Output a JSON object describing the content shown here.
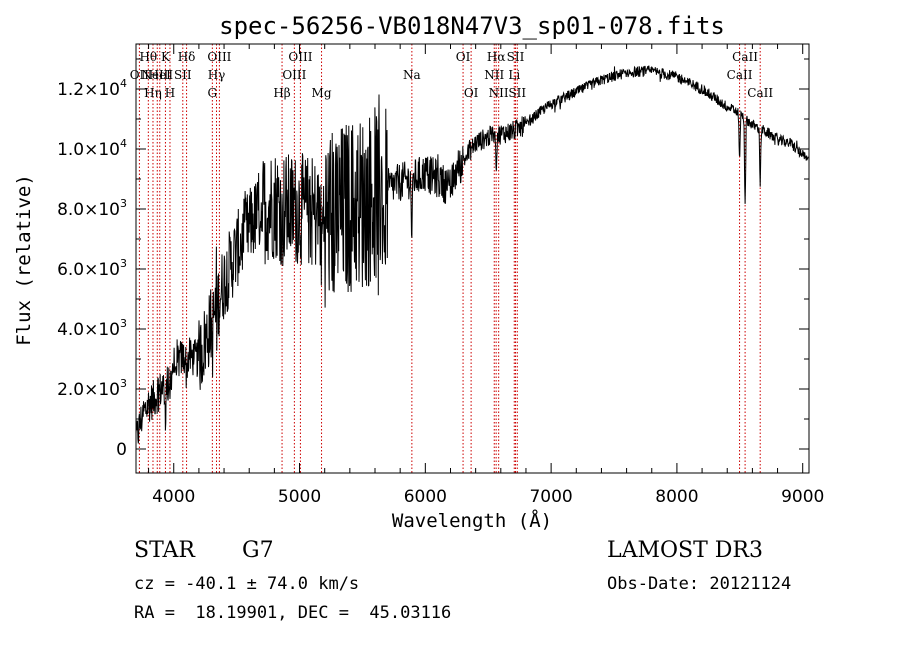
{
  "chart_data": {
    "type": "line",
    "title": "spec-56256-VB018N47V3_sp01-078.fits",
    "xlabel": "Wavelength (Å)",
    "ylabel": "Flux (relative)",
    "xlim": [
      3700,
      9050
    ],
    "ylim": [
      -800,
      13500
    ],
    "x_ticks": [
      {
        "value": 4000,
        "label": "4000"
      },
      {
        "value": 5000,
        "label": "5000"
      },
      {
        "value": 6000,
        "label": "6000"
      },
      {
        "value": 7000,
        "label": "7000"
      },
      {
        "value": 8000,
        "label": "8000"
      },
      {
        "value": 9000,
        "label": "9000"
      }
    ],
    "y_ticks": [
      {
        "value": 0,
        "mant": "0",
        "exp": ""
      },
      {
        "value": 2000,
        "mant": "2.0×10",
        "exp": "3"
      },
      {
        "value": 4000,
        "mant": "4.0×10",
        "exp": "3"
      },
      {
        "value": 6000,
        "mant": "6.0×10",
        "exp": "3"
      },
      {
        "value": 8000,
        "mant": "8.0×10",
        "exp": "3"
      },
      {
        "value": 10000,
        "mant": "1.0×10",
        "exp": "4"
      },
      {
        "value": 12000,
        "mant": "1.2×10",
        "exp": "4"
      }
    ],
    "continuum": [
      [
        3700,
        300
      ],
      [
        3750,
        1100
      ],
      [
        3800,
        1500
      ],
      [
        3850,
        1700
      ],
      [
        3900,
        2000
      ],
      [
        3950,
        2200
      ],
      [
        4000,
        2800
      ],
      [
        4050,
        3000
      ],
      [
        4100,
        3100
      ],
      [
        4200,
        3000
      ],
      [
        4300,
        4200
      ],
      [
        4400,
        5600
      ],
      [
        4500,
        6600
      ],
      [
        4600,
        7400
      ],
      [
        4700,
        8000
      ],
      [
        4800,
        8200
      ],
      [
        4900,
        8000
      ],
      [
        5000,
        8000
      ],
      [
        5100,
        7900
      ],
      [
        5200,
        7700
      ],
      [
        5300,
        7800
      ],
      [
        5400,
        8100
      ],
      [
        5500,
        8200
      ],
      [
        5600,
        8500
      ],
      [
        5700,
        8700
      ],
      [
        5800,
        8900
      ],
      [
        5900,
        9000
      ],
      [
        6000,
        9200
      ],
      [
        6100,
        9000
      ],
      [
        6200,
        8700
      ],
      [
        6250,
        9300
      ],
      [
        6300,
        9600
      ],
      [
        6400,
        10200
      ],
      [
        6500,
        10400
      ],
      [
        6600,
        10500
      ],
      [
        6700,
        10600
      ],
      [
        6800,
        10800
      ],
      [
        6900,
        11200
      ],
      [
        7000,
        11500
      ],
      [
        7200,
        11900
      ],
      [
        7400,
        12300
      ],
      [
        7600,
        12550
      ],
      [
        7800,
        12600
      ],
      [
        8000,
        12400
      ],
      [
        8200,
        12000
      ],
      [
        8400,
        11400
      ],
      [
        8500,
        11200
      ],
      [
        8600,
        10800
      ],
      [
        8700,
        10600
      ],
      [
        8800,
        10300
      ],
      [
        8900,
        10200
      ],
      [
        9000,
        9800
      ],
      [
        9040,
        9600
      ]
    ],
    "absorption": [
      {
        "w": 3934,
        "depth": 1000
      },
      {
        "w": 3968,
        "depth": 900
      },
      {
        "w": 4102,
        "depth": 600
      },
      {
        "w": 4307,
        "depth": 800
      },
      {
        "w": 4340,
        "depth": 600
      },
      {
        "w": 4861,
        "depth": 900
      },
      {
        "w": 5175,
        "depth": 1300
      },
      {
        "w": 5893,
        "depth": 2000
      },
      {
        "w": 6563,
        "depth": 1000
      },
      {
        "w": 8498,
        "depth": 1500
      },
      {
        "w": 8542,
        "depth": 2800
      },
      {
        "w": 8662,
        "depth": 1800
      }
    ],
    "noise": [
      {
        "from": 3700,
        "to": 4200,
        "amp": 650
      },
      {
        "from": 4200,
        "to": 4700,
        "amp": 1300
      },
      {
        "from": 4700,
        "to": 5200,
        "amp": 1900
      },
      {
        "from": 5200,
        "to": 5700,
        "amp": 3000
      },
      {
        "from": 5700,
        "to": 6300,
        "amp": 650
      },
      {
        "from": 6300,
        "to": 6800,
        "amp": 350
      },
      {
        "from": 6800,
        "to": 9050,
        "amp": 180
      }
    ],
    "spectral_lines": [
      {
        "w": 3727,
        "label": "OII",
        "row": 1
      },
      {
        "w": 3798,
        "label": "Hθ",
        "row": 0
      },
      {
        "w": 3835,
        "label": "Hη",
        "row": 2
      },
      {
        "w": 3869,
        "label": "NeIII",
        "row": 1
      },
      {
        "w": 3889,
        "label": "HeI",
        "row": 1
      },
      {
        "w": 3934,
        "label": "K",
        "row": 0
      },
      {
        "w": 3970,
        "label": "H",
        "row": 2
      },
      {
        "w": 4072,
        "label": "SII",
        "row": 1
      },
      {
        "w": 4102,
        "label": "Hδ",
        "row": 0
      },
      {
        "w": 4307,
        "label": "G",
        "row": 2
      },
      {
        "w": 4340,
        "label": "Hγ",
        "row": 1
      },
      {
        "w": 4363,
        "label": "OIII",
        "row": 0
      },
      {
        "w": 4861,
        "label": "Hβ",
        "row": 2
      },
      {
        "w": 4959,
        "label": "OIII",
        "row": 1
      },
      {
        "w": 5007,
        "label": "OIII",
        "row": 0
      },
      {
        "w": 5175,
        "label": "Mg",
        "row": 2
      },
      {
        "w": 5893,
        "label": "Na",
        "row": 1
      },
      {
        "w": 6300,
        "label": "OI",
        "row": 0
      },
      {
        "w": 6364,
        "label": "OI",
        "row": 2
      },
      {
        "w": 6548,
        "label": "NII",
        "row": 1
      },
      {
        "w": 6563,
        "label": "Hα",
        "row": 0
      },
      {
        "w": 6583,
        "label": "NII",
        "row": 2
      },
      {
        "w": 6707,
        "label": "Li",
        "row": 1
      },
      {
        "w": 6717,
        "label": "SII",
        "row": 0
      },
      {
        "w": 6731,
        "label": "SII",
        "row": 2
      },
      {
        "w": 8498,
        "label": "CaII",
        "row": 1
      },
      {
        "w": 8542,
        "label": "CaII",
        "row": 0
      },
      {
        "w": 8662,
        "label": "CaII",
        "row": 2
      }
    ],
    "line_color": "#000000",
    "marker_color": "#cc0000",
    "grid": false
  },
  "info": {
    "object_class": "STAR",
    "subclass": "G7",
    "survey": "LAMOST DR3",
    "redshift": "cz = -40.1 ± 74.0 km/s",
    "obs_date": "Obs-Date: 20121124",
    "coords": "RA =  18.19901, DEC =  45.03116"
  }
}
